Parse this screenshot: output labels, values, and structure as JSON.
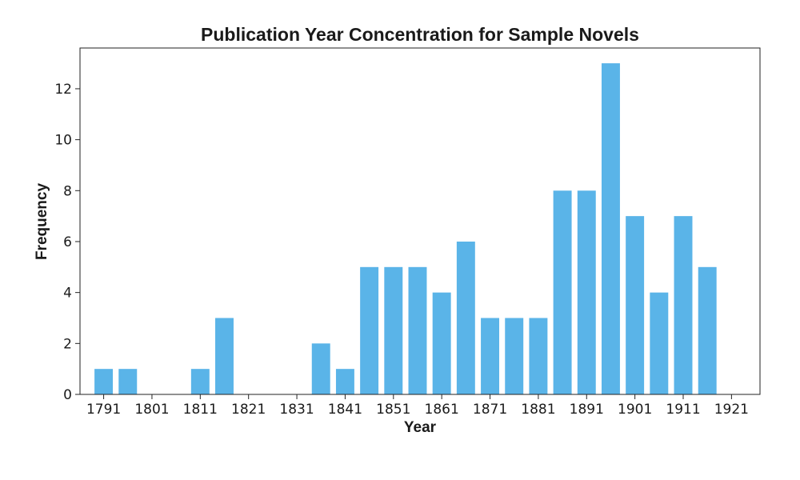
{
  "chart_data": {
    "type": "bar",
    "title": "Publication Year Concentration for Sample Novels",
    "xlabel": "Year",
    "ylabel": "Frequency",
    "bar_color": "#5ab4e8",
    "x": [
      1791,
      1796,
      1801,
      1806,
      1811,
      1816,
      1821,
      1826,
      1831,
      1836,
      1841,
      1846,
      1851,
      1856,
      1861,
      1866,
      1871,
      1876,
      1881,
      1886,
      1891,
      1896,
      1901,
      1906,
      1911,
      1916
    ],
    "values": [
      1,
      1,
      0,
      0,
      1,
      3,
      0,
      0,
      0,
      2,
      1,
      5,
      5,
      5,
      4,
      6,
      3,
      3,
      3,
      8,
      8,
      13,
      7,
      4,
      7,
      5
    ],
    "xlim": [
      1786.1,
      1926.9
    ],
    "ylim": [
      0,
      13.6
    ],
    "xticks": [
      1791,
      1801,
      1811,
      1821,
      1831,
      1841,
      1851,
      1861,
      1871,
      1881,
      1891,
      1901,
      1911,
      1921
    ],
    "yticks": [
      0,
      2,
      4,
      6,
      8,
      10,
      12
    ],
    "grid": false
  }
}
